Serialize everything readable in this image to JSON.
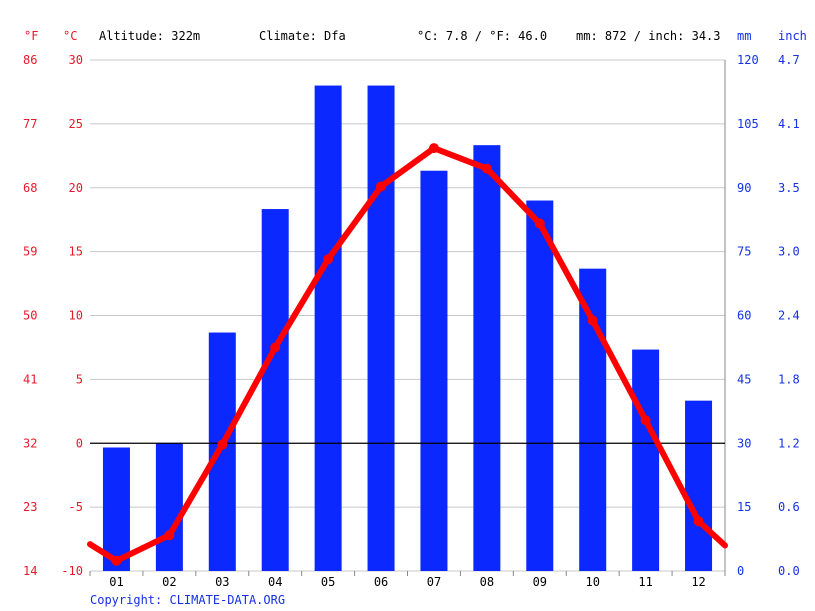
{
  "header": {
    "unit_f": "°F",
    "unit_c": "°C",
    "altitude": "Altitude: 322m",
    "climate": "Climate: Dfa",
    "avg_temp": "°C: 7.8 / °F: 46.0",
    "precip_total": "mm: 872 / inch: 34.3",
    "unit_mm": "mm",
    "unit_inch": "inch"
  },
  "copyright": "Copyright: CLIMATE-DATA.ORG",
  "colors": {
    "temp": "#e8192c",
    "temp_line": "#ff0000",
    "precip": "#0a28ff",
    "precip_text": "#1430e8",
    "grid": "#c8c8c8",
    "zero_line": "#000000"
  },
  "chart_data": {
    "type": "bar+line",
    "categories": [
      "01",
      "02",
      "03",
      "04",
      "05",
      "06",
      "07",
      "08",
      "09",
      "10",
      "11",
      "12"
    ],
    "series": [
      {
        "type": "bar",
        "axis": "right",
        "values": [
          29,
          30,
          56,
          85,
          114,
          114,
          94,
          100,
          87,
          71,
          52,
          40
        ]
      },
      {
        "type": "line",
        "axis": "left",
        "values": [
          -9.2,
          -7.2,
          -0.1,
          7.5,
          14.4,
          20.1,
          23.1,
          21.5,
          17.2,
          9.6,
          1.8,
          -6.1
        ],
        "edge_values": [
          -7.9,
          -8.0
        ]
      }
    ],
    "y_left": {
      "ticks_c": [
        30,
        25,
        20,
        15,
        10,
        5,
        0,
        -5,
        -10
      ],
      "ticks_f": [
        86,
        77,
        68,
        59,
        50,
        41,
        32,
        23,
        14
      ],
      "ylim": [
        -10,
        30
      ]
    },
    "y_right": {
      "ticks_mm": [
        120,
        105,
        90,
        75,
        60,
        45,
        30,
        15,
        0
      ],
      "ticks_inch": [
        "4.7",
        "4.1",
        "3.5",
        "3.0",
        "2.4",
        "1.8",
        "1.2",
        "0.6",
        "0.0"
      ],
      "ylim": [
        0,
        120
      ]
    },
    "grid": true,
    "zero_line": true
  }
}
